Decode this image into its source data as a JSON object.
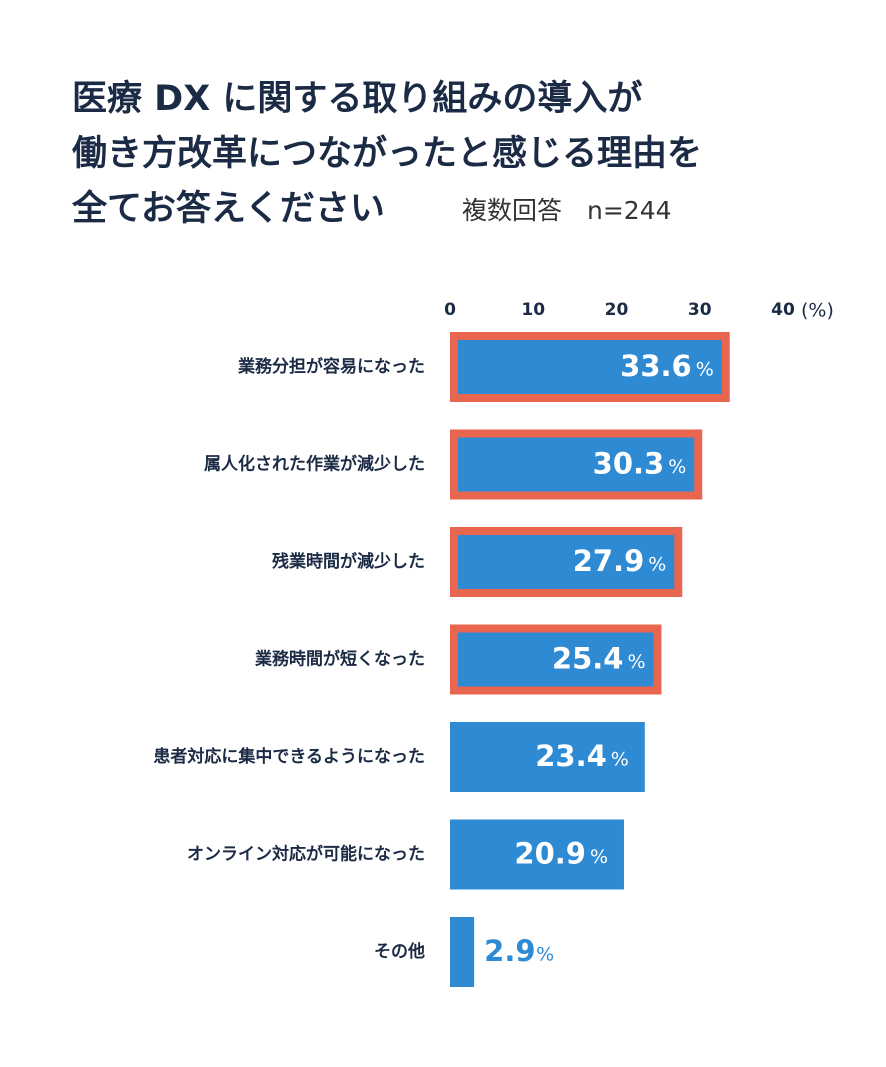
{
  "chart_data": {
    "type": "hbar",
    "title": [
      "医療 DX に関する取り組みの導入が",
      "働き方改革につながったと感じる理由を",
      "全てお答えください"
    ],
    "subtitle": "複数回答　n=244",
    "categories": [
      "業務分担が容易になった",
      "属人化された作業が減少した",
      "残業時間が減少した",
      "業務時間が短くなった",
      "患者対応に集中できるようになった",
      "オンライン対応が可能になった",
      "その他"
    ],
    "values": [
      33.6,
      30.3,
      27.9,
      25.4,
      23.4,
      20.9,
      2.9
    ],
    "value_unit": "%",
    "highlight": [
      true,
      true,
      true,
      true,
      false,
      false,
      false
    ],
    "color": "#2f8ad4",
    "highlight_color": "#e8654f",
    "xlim": [
      0,
      40
    ],
    "xticks": [
      0,
      10,
      20,
      30,
      40
    ],
    "x_unit": "(%)"
  }
}
